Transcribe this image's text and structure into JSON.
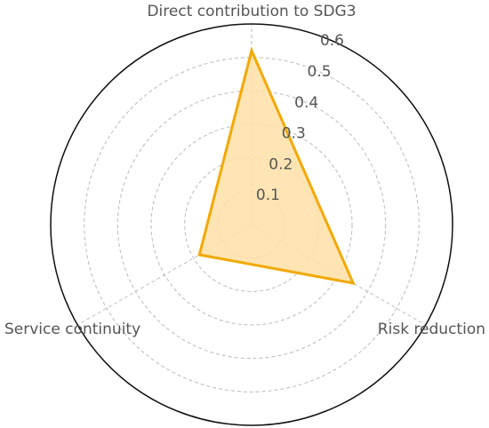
{
  "chart_data": {
    "type": "radar",
    "axes": [
      "Direct contribution to SDG3",
      "Risk reduction",
      "Service continuity"
    ],
    "values": [
      0.52,
      0.35,
      0.18
    ],
    "rlim": [
      0,
      0.6
    ],
    "rticks": [
      0.1,
      0.2,
      0.3,
      0.4,
      0.5,
      0.6
    ],
    "grid": true,
    "fill_color": "#FFE0A6",
    "line_color": "#F2A900",
    "grid_color": "#BBBBBB",
    "frame_color": "#111111"
  }
}
